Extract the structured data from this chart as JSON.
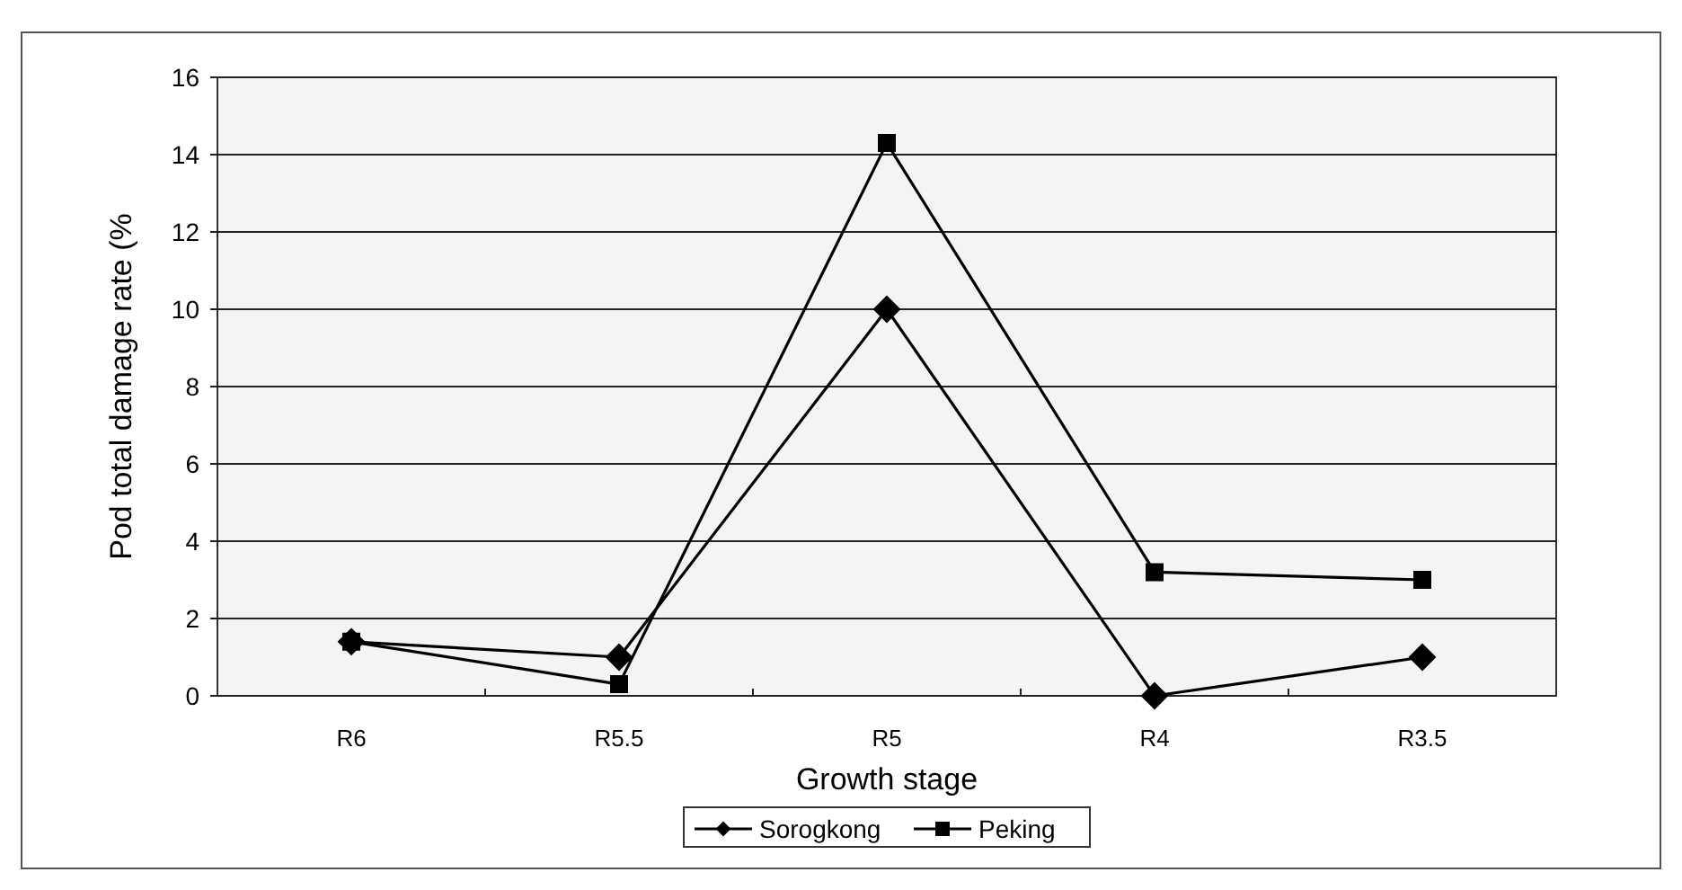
{
  "chart_data": {
    "type": "line",
    "xlabel": "Growth stage",
    "ylabel": "Pod total damage rate (%",
    "categories": [
      "R6",
      "R5.5",
      "R5",
      "R4",
      "R3.5"
    ],
    "series": [
      {
        "name": "Sorogkong",
        "color": "#000000",
        "marker": "diamond",
        "values": [
          1.4,
          1.0,
          10.0,
          0.0,
          1.0
        ]
      },
      {
        "name": "Peking",
        "color": "#000000",
        "marker": "square",
        "values": [
          1.4,
          0.3,
          14.3,
          3.2,
          3.0
        ]
      }
    ],
    "ylim": [
      0,
      16
    ],
    "yticks": [
      0,
      2,
      4,
      6,
      8,
      10,
      12,
      14,
      16
    ],
    "grid": "y",
    "legend": "bottom",
    "line_style": "solid"
  }
}
